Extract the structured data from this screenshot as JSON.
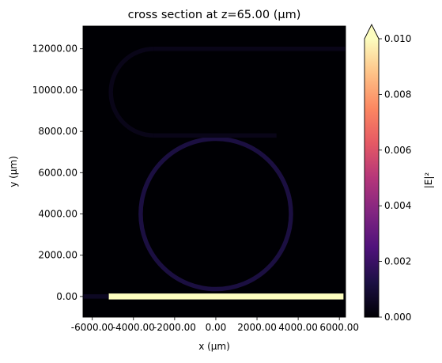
{
  "chart_data": {
    "type": "heatmap",
    "title": "cross section at z=65.00 (µm)",
    "xlabel": "x (µm)",
    "ylabel": "y (µm)",
    "xlim": [
      -6450,
      6300
    ],
    "ylim": [
      -1000,
      13100
    ],
    "x_ticks": [
      -6000,
      -4000,
      -2000,
      0,
      2000,
      4000,
      6000
    ],
    "x_tick_labels": [
      "-6000.00",
      "-4000.00",
      "-2000.00",
      "0.00",
      "2000.00",
      "4000.00",
      "6000.00"
    ],
    "y_ticks": [
      0,
      2000,
      4000,
      6000,
      8000,
      10000,
      12000
    ],
    "y_tick_labels": [
      "0.00",
      "2000.00",
      "4000.00",
      "6000.00",
      "8000.00",
      "10000.00",
      "12000.00"
    ],
    "colorbar": {
      "label": "|E|²",
      "colormap": "magma",
      "min": 0.0,
      "max": 0.01,
      "extend": "max",
      "ticks": [
        0.0,
        0.002,
        0.004,
        0.006,
        0.008,
        0.01
      ],
      "tick_labels": [
        "0.000",
        "0.002",
        "0.004",
        "0.006",
        "0.008",
        "0.010"
      ]
    },
    "background_value": 0.0,
    "structures": [
      {
        "name": "bus waveguide",
        "kind": "straight",
        "x": [
          -5200,
          6200
        ],
        "y": [
          0,
          0
        ],
        "value": 0.0105
      },
      {
        "name": "input waveguide",
        "kind": "straight",
        "x": [
          -6450,
          -5200
        ],
        "y": [
          0,
          0
        ],
        "value": 0.0006
      },
      {
        "name": "ring resonator",
        "kind": "circle",
        "center": [
          0,
          4000
        ],
        "radius": 3650,
        "value": 0.0012
      },
      {
        "name": "upper waveguide top",
        "kind": "straight",
        "x": [
          -3000,
          6300
        ],
        "y": [
          12000,
          12000
        ],
        "value": 0.0004
      },
      {
        "name": "upper waveguide bend",
        "kind": "arc",
        "center": [
          -3000,
          9900
        ],
        "radius": 2100,
        "value": 0.0004
      },
      {
        "name": "upper waveguide bottom",
        "kind": "straight",
        "x": [
          -3000,
          2950
        ],
        "y": [
          7800,
          7800
        ],
        "value": 0.0004
      }
    ]
  }
}
